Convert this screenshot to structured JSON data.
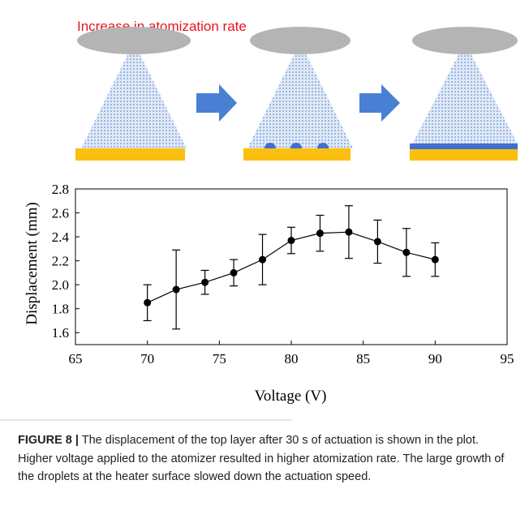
{
  "diagram": {
    "label": "Increase in atomization rate"
  },
  "chart_data": {
    "type": "line",
    "xlabel": "Voltage (V)",
    "ylabel": "Displacement (mm)",
    "x": [
      70,
      72,
      74,
      76,
      78,
      80,
      82,
      84,
      86,
      88,
      90
    ],
    "series": [
      {
        "color": "#000000",
        "values": [
          1.85,
          1.96,
          2.02,
          2.1,
          2.21,
          2.37,
          2.43,
          2.44,
          2.36,
          2.27,
          2.21
        ],
        "errors": [
          0.15,
          0.33,
          0.1,
          0.11,
          0.21,
          0.11,
          0.15,
          0.22,
          0.18,
          0.2,
          0.14
        ]
      }
    ],
    "xlim": [
      65,
      95
    ],
    "xticks": [
      65,
      70,
      75,
      80,
      85,
      90,
      95
    ],
    "ylim": [
      1.5,
      2.8
    ],
    "yticks": [
      1.6,
      1.8,
      {
        "value": 2,
        "label": "2.0"
      },
      2.2,
      2.4,
      2.6,
      2.8
    ]
  },
  "caption": {
    "label": "FIGURE 8 |",
    "text": "The displacement of the top layer after 30 s of actuation is shown in the plot. Higher voltage applied to the atomizer resulted in higher atomization rate. The large growth of the droplets at the heater surface slowed down the actuation speed."
  }
}
